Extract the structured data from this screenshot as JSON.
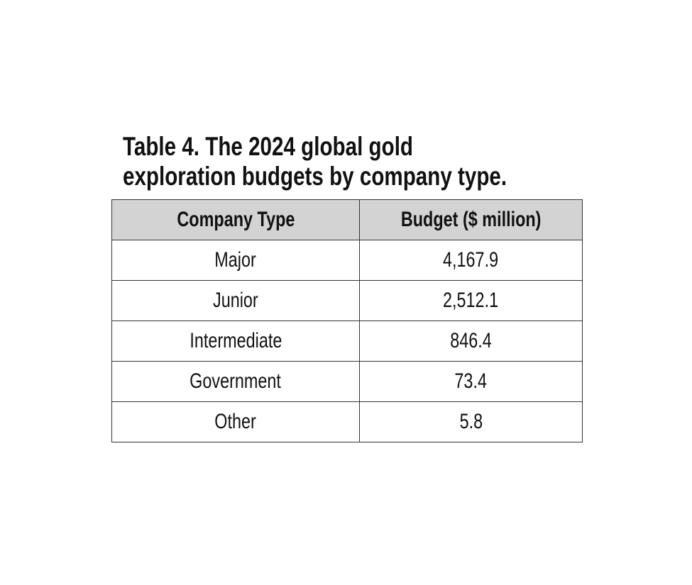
{
  "title_lines": [
    "Table 4. The 2024 global gold",
    "exploration budgets by company type."
  ],
  "table": {
    "header": [
      "Company Type",
      "Budget ($ million)"
    ],
    "rows": [
      [
        "Major",
        "4,167.9"
      ],
      [
        "Junior",
        "2,512.1"
      ],
      [
        "Intermediate",
        "846.4"
      ],
      [
        "Government",
        "73.4"
      ],
      [
        "Other",
        "5.8"
      ]
    ]
  }
}
